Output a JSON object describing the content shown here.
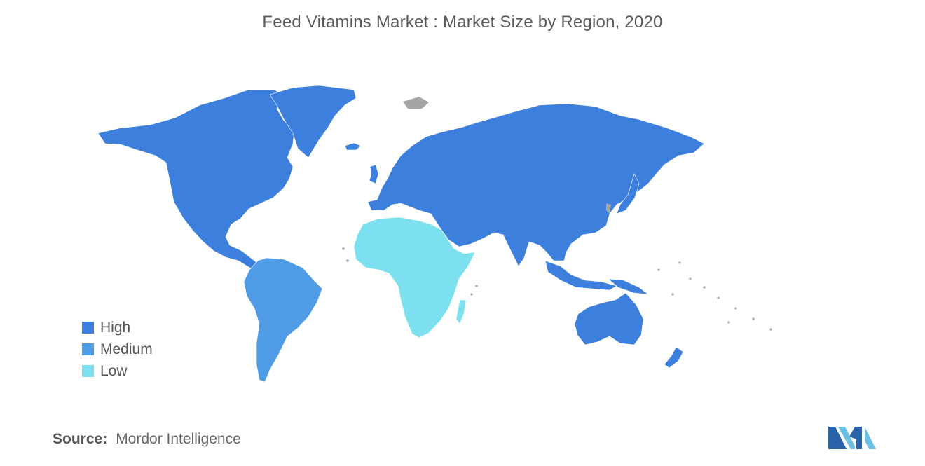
{
  "title": "Feed Vitamins Market : Market Size by Region, 2020",
  "colors": {
    "high": "#3d7fdc",
    "medium": "#4f9be6",
    "low": "#7de0ef",
    "no_data": "#a5a5a5",
    "logo_dark": "#2a63a8",
    "logo_light": "#6cc0e3"
  },
  "legend": {
    "items": [
      {
        "label": "High",
        "level": "high"
      },
      {
        "label": "Medium",
        "level": "medium"
      },
      {
        "label": "Low",
        "level": "low"
      }
    ]
  },
  "regions": {
    "north_america": "high",
    "europe": "high",
    "asia_pacific": "high",
    "middle_east": "high",
    "south_america": "medium",
    "africa": "low"
  },
  "source": {
    "label": "Source:",
    "value": "Mordor Intelligence"
  },
  "logo": {
    "name": "mordor-intelligence-logo"
  }
}
